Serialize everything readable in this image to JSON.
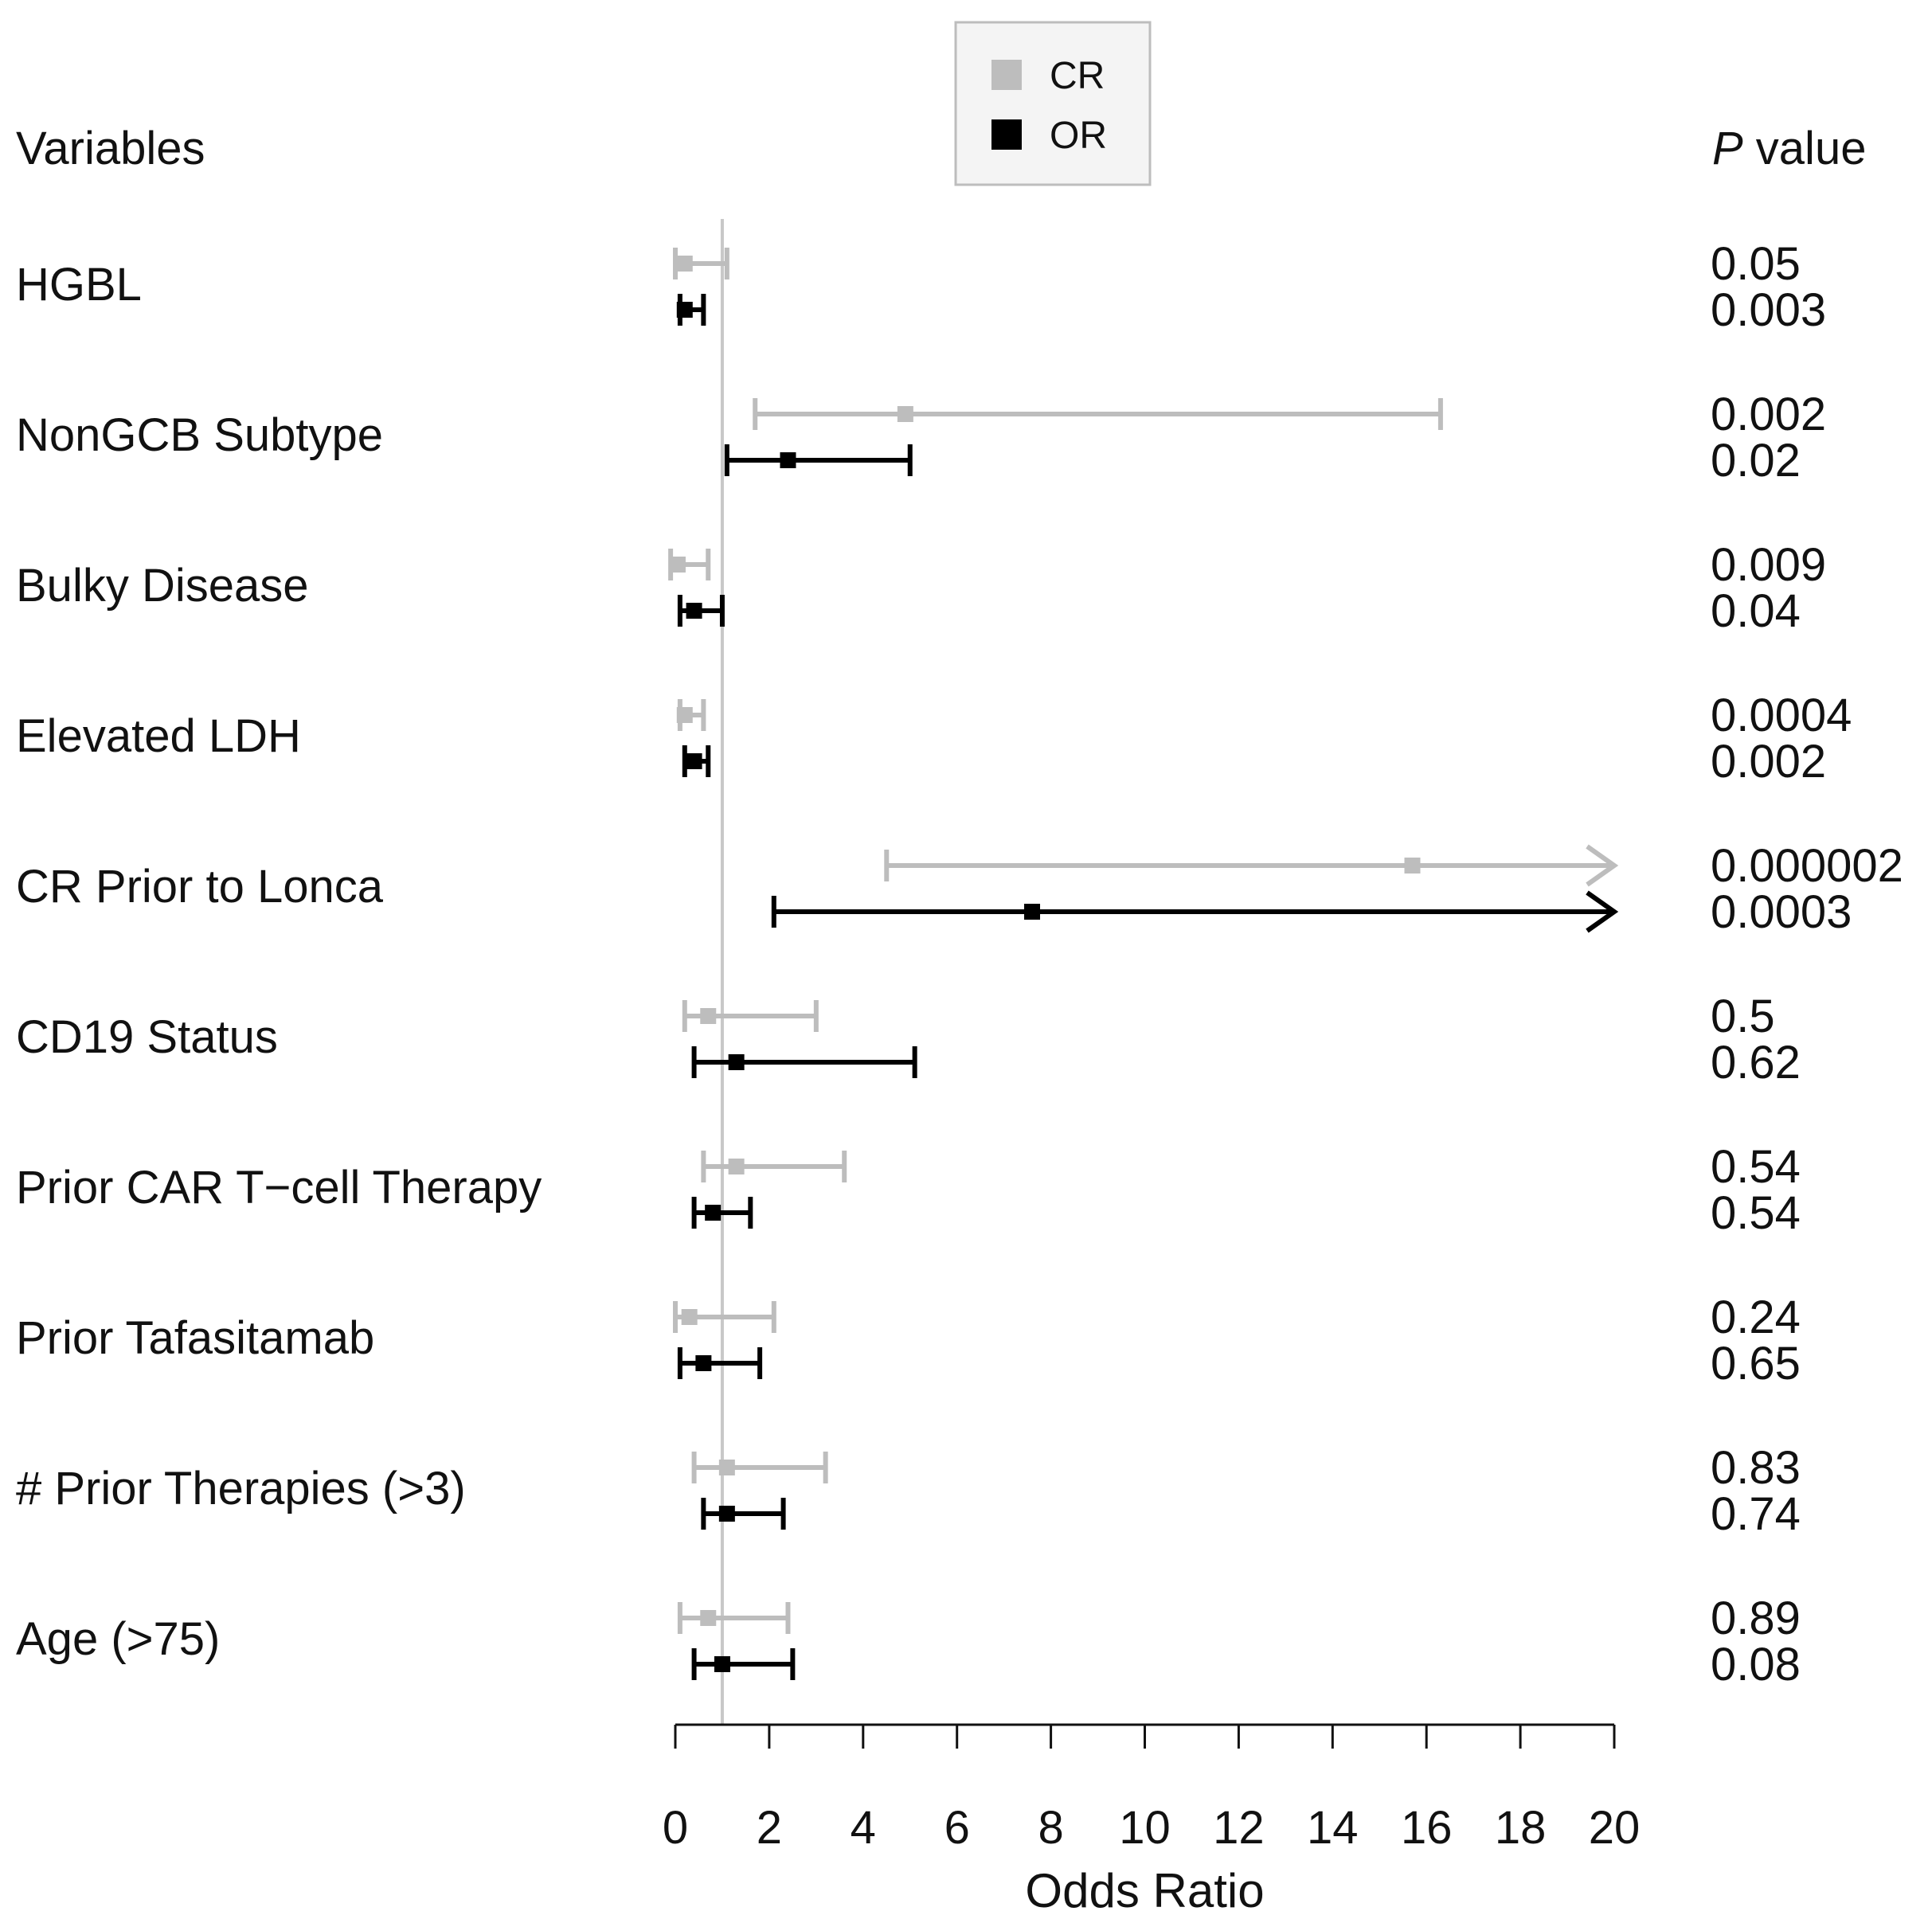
{
  "chart_data": {
    "type": "forest",
    "xlabel": "Odds Ratio",
    "xlim": [
      0,
      20
    ],
    "x_ticks": [
      0,
      2,
      4,
      6,
      8,
      10,
      12,
      14,
      16,
      18,
      20
    ],
    "reference_line": 1,
    "header_left": "Variables",
    "header_right_italic": "P",
    "header_right_rest": " value",
    "legend": [
      {
        "name": "CR",
        "color": "#bdbdbd"
      },
      {
        "name": "OR",
        "color": "#000000"
      }
    ],
    "rows": [
      {
        "label": "HGBL",
        "CR": {
          "or": 0.2,
          "lo": 0.0,
          "hi": 1.1,
          "p": "0.05"
        },
        "OR": {
          "or": 0.2,
          "lo": 0.1,
          "hi": 0.6,
          "p": "0.003"
        }
      },
      {
        "label": "NonGCB Subtype",
        "CR": {
          "or": 4.9,
          "lo": 1.7,
          "hi": 16.3,
          "p": "0.002"
        },
        "OR": {
          "or": 2.4,
          "lo": 1.1,
          "hi": 5.0,
          "p": "0.02"
        }
      },
      {
        "label": "Bulky Disease",
        "CR": {
          "or": 0.05,
          "lo": -0.1,
          "hi": 0.7,
          "p": "0.009"
        },
        "OR": {
          "or": 0.4,
          "lo": 0.1,
          "hi": 1.0,
          "p": "0.04"
        }
      },
      {
        "label": "Elevated LDH",
        "CR": {
          "or": 0.2,
          "lo": 0.1,
          "hi": 0.6,
          "p": "0.0004"
        },
        "OR": {
          "or": 0.4,
          "lo": 0.2,
          "hi": 0.7,
          "p": "0.002"
        }
      },
      {
        "label": "CR Prior to Lonca",
        "CR": {
          "or": 15.7,
          "lo": 4.5,
          "hi": 20,
          "p": "0.000002",
          "arrow": true
        },
        "OR": {
          "or": 7.6,
          "lo": 2.1,
          "hi": 20,
          "p": "0.0003",
          "arrow": true
        }
      },
      {
        "label": "CD19 Status",
        "CR": {
          "or": 0.7,
          "lo": 0.2,
          "hi": 3.0,
          "p": "0.5"
        },
        "OR": {
          "or": 1.3,
          "lo": 0.4,
          "hi": 5.1,
          "p": "0.62"
        }
      },
      {
        "label": "Prior CAR T−cell Therapy",
        "CR": {
          "or": 1.3,
          "lo": 0.6,
          "hi": 3.6,
          "p": "0.54"
        },
        "OR": {
          "or": 0.8,
          "lo": 0.4,
          "hi": 1.6,
          "p": "0.54"
        }
      },
      {
        "label": "Prior Tafasitamab",
        "CR": {
          "or": 0.3,
          "lo": 0.0,
          "hi": 2.1,
          "p": "0.24"
        },
        "OR": {
          "or": 0.6,
          "lo": 0.1,
          "hi": 1.8,
          "p": "0.65"
        }
      },
      {
        "label": "# Prior Therapies (>3)",
        "CR": {
          "or": 1.1,
          "lo": 0.4,
          "hi": 3.2,
          "p": "0.83"
        },
        "OR": {
          "or": 1.1,
          "lo": 0.6,
          "hi": 2.3,
          "p": "0.74"
        }
      },
      {
        "label": "Age (>75)",
        "CR": {
          "or": 0.7,
          "lo": 0.1,
          "hi": 2.4,
          "p": "0.89"
        },
        "OR": {
          "or": 1.0,
          "lo": 0.4,
          "hi": 2.5,
          "p": "0.08"
        }
      }
    ]
  }
}
